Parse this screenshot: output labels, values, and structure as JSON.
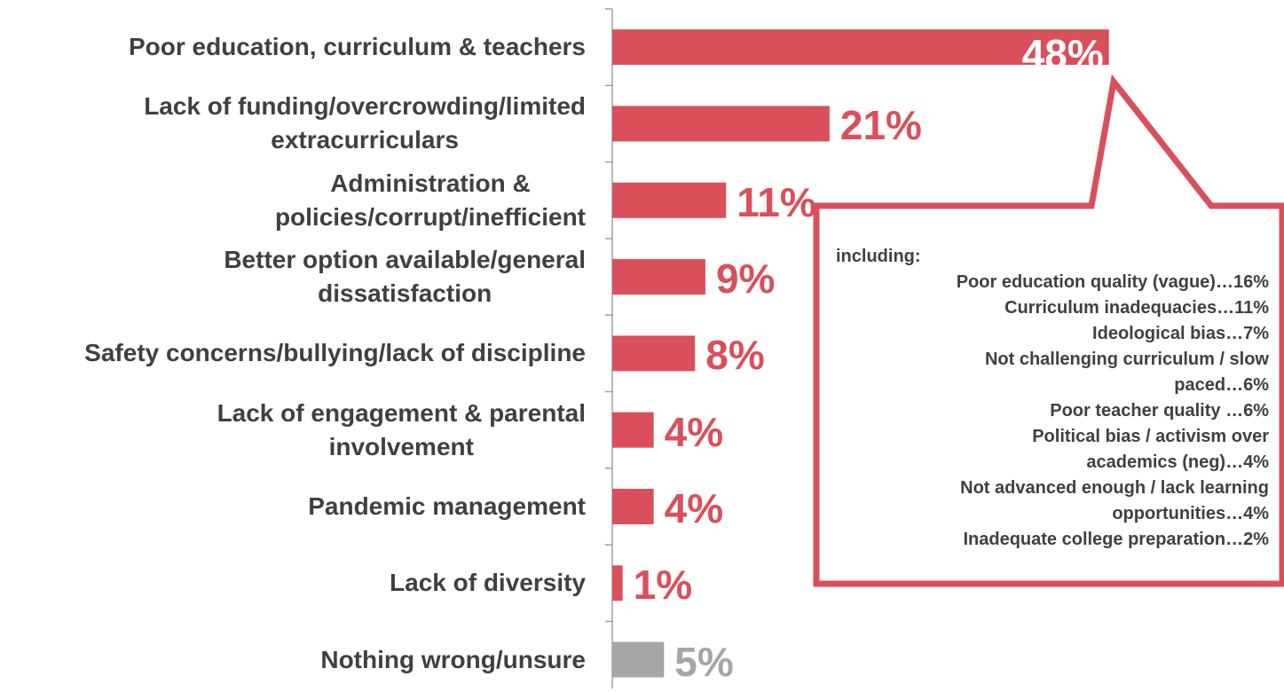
{
  "chart_data": {
    "type": "bar",
    "orientation": "horizontal",
    "categories": [
      "Poor education, curriculum & teachers",
      "Lack of funding/overcrowding/limited\nextracurriculars",
      "Administration &\npolicies/corrupt/inefficient",
      "Better option available/general\ndissatisfaction",
      "Safety concerns/bullying/lack of discipline",
      "Lack of engagement & parental\ninvolvement",
      "Pandemic management",
      "Lack of diversity",
      "Nothing wrong/unsure"
    ],
    "values": [
      48,
      21,
      11,
      9,
      8,
      4,
      4,
      1,
      5
    ],
    "value_labels": [
      "48%",
      "21%",
      "11%",
      "9%",
      "8%",
      "4%",
      "4%",
      "1%",
      "5%"
    ],
    "colors": [
      "#d9505a",
      "#d9505a",
      "#d9505a",
      "#d9505a",
      "#d9505a",
      "#d9505a",
      "#d9505a",
      "#d9505a",
      "#a6a6a6"
    ],
    "callout": {
      "heading": "including:",
      "items": [
        "Poor education quality (vague)…16%",
        "Curriculum inadequacies…11%",
        "Ideological bias…7%",
        "Not challenging curriculum / slow\npaced…6%",
        "Poor teacher quality …6%",
        "Political bias / activism over\nacademics (neg)…4%",
        "Not advanced enough / lack learning\nopportunities…4%",
        "Inadequate college preparation…2%"
      ]
    }
  }
}
